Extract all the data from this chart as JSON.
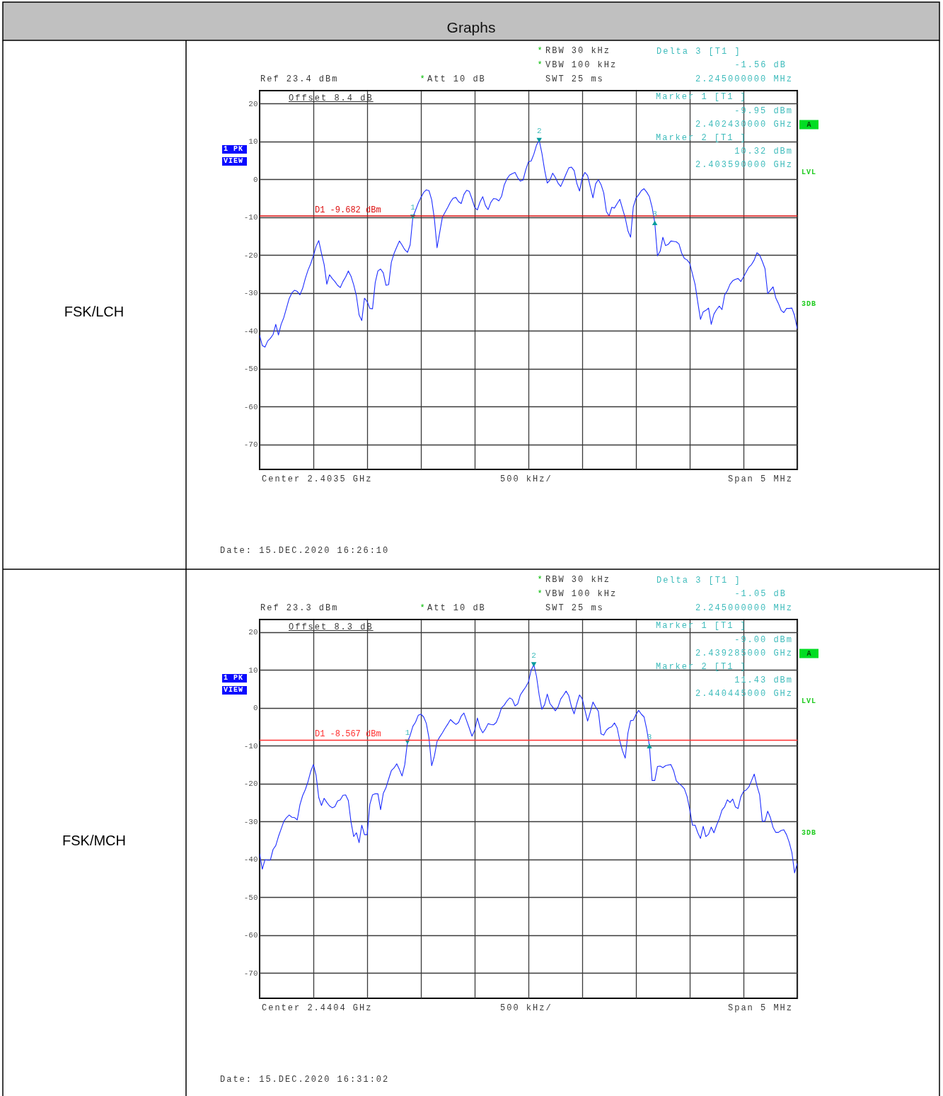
{
  "chart_data": [
    {
      "type": "line",
      "categories": [
        null,
        null,
        null,
        null,
        null,
        null,
        null,
        null,
        null,
        null,
        null,
        null,
        null,
        null,
        null,
        null,
        null,
        null,
        null,
        null,
        null,
        null,
        null,
        null,
        null,
        null,
        null,
        null,
        null,
        null,
        null,
        null,
        null,
        null,
        null,
        null,
        null,
        null,
        null,
        null,
        null,
        null,
        null,
        null,
        null,
        null,
        null,
        null,
        null,
        null,
        null,
        null,
        null,
        null,
        null,
        null,
        null,
        null,
        null,
        null,
        null,
        null,
        null,
        null,
        null,
        null,
        null,
        null,
        null,
        null,
        null,
        null,
        null,
        null,
        null,
        null,
        null,
        null,
        null,
        null,
        null,
        null,
        null,
        null,
        null,
        null,
        null,
        null,
        null,
        null,
        null,
        null,
        null,
        null,
        null,
        null,
        null,
        null,
        null,
        null,
        null,
        null,
        null,
        null,
        null,
        null,
        null,
        null,
        null,
        null,
        null,
        null,
        null,
        null,
        null,
        null,
        null,
        null,
        null,
        null,
        null,
        null,
        null,
        null,
        null,
        null,
        null,
        null,
        null,
        null,
        null,
        null,
        null,
        null,
        null,
        null,
        null,
        null,
        null,
        null,
        null,
        null,
        null,
        null,
        null,
        null,
        null,
        null,
        null,
        null,
        null,
        null,
        null,
        null,
        null,
        null,
        null,
        null,
        null,
        null,
        null,
        null,
        null,
        null,
        null,
        null,
        null,
        null,
        null,
        null,
        null,
        null,
        null,
        null,
        null,
        null,
        null,
        null,
        null,
        null,
        null,
        null,
        null,
        null,
        null,
        null,
        null,
        null,
        null,
        null,
        null,
        null,
        null,
        null,
        null,
        null,
        null,
        null,
        null,
        null,
        null
      ],
      "series": [
        {
          "color": "#1f2fff",
          "values": [
            -41.2,
            -43.9,
            -44.3,
            -42.7,
            -42.0,
            -41.0,
            -38.3,
            -41.1,
            -38.3,
            -36.5,
            -34.0,
            -31.5,
            -30.0,
            -29.3,
            -29.6,
            -30.5,
            -28.8,
            -26.2,
            -24.0,
            -22.3,
            -20.2,
            -17.7,
            -16.2,
            -19.5,
            -22.5,
            -27.7,
            -25.2,
            -26.2,
            -27.0,
            -28.0,
            -28.6,
            -27.0,
            -25.8,
            -24.2,
            -25.6,
            -27.9,
            -30.8,
            -35.8,
            -37.3,
            -31.4,
            -32.3,
            -34.1,
            -34.2,
            -27.3,
            -24.2,
            -23.7,
            -24.7,
            -28.0,
            -27.8,
            -21.9,
            -19.6,
            -17.9,
            -16.3,
            -17.4,
            -18.6,
            -19.3,
            -17.3,
            -10.0,
            -8.2,
            -6.3,
            -4.8,
            -3.5,
            -2.8,
            -3.0,
            -5.4,
            -10.4,
            -18.1,
            -14.0,
            -10.0,
            -8.7,
            -7.4,
            -6.0,
            -5.0,
            -4.8,
            -5.9,
            -6.4,
            -4.0,
            -2.9,
            -3.2,
            -5.2,
            -7.4,
            -8.1,
            -6.0,
            -4.6,
            -6.9,
            -8.0,
            -6.1,
            -5.1,
            -5.2,
            -5.7,
            -4.5,
            -1.5,
            0.1,
            1.1,
            1.5,
            1.8,
            0.4,
            -0.5,
            -0.2,
            2.5,
            4.6,
            4.8,
            6.6,
            9.0,
            10.3,
            6.9,
            2.5,
            -1.0,
            -0.2,
            1.6,
            0.5,
            -1.0,
            -1.9,
            -0.3,
            1.4,
            3.0,
            3.2,
            2.3,
            -1.1,
            -3.1,
            0.3,
            1.8,
            1.0,
            -2.0,
            -4.9,
            -1.2,
            -0.1,
            -1.4,
            -3.6,
            -8.5,
            -9.7,
            -7.4,
            -7.6,
            -6.4,
            -5.3,
            -7.8,
            -10.2,
            -13.6,
            -15.3,
            -7.3,
            -5.0,
            -4.1,
            -3.0,
            -2.5,
            -3.4,
            -4.6,
            -7.4,
            -11.5,
            -20.2,
            -19.0,
            -15.3,
            -17.5,
            -17.2,
            -16.3,
            -16.4,
            -16.5,
            -17.1,
            -19.5,
            -20.9,
            -21.3,
            -22.2,
            -25.0,
            -27.8,
            -32.5,
            -37.0,
            -35.0,
            -34.6,
            -34.0,
            -38.3,
            -35.6,
            -34.4,
            -33.5,
            -34.4,
            -30.5,
            -29.4,
            -27.7,
            -26.8,
            -26.4,
            -26.2,
            -27.0,
            -25.8,
            -24.5,
            -23.2,
            -22.5,
            -21.3,
            -19.4,
            -20.0,
            -21.7,
            -23.6,
            -30.2,
            -29.3,
            -28.4,
            -31.3,
            -32.8,
            -34.6,
            -35.2,
            -34.1,
            -34.1,
            -34.0,
            -36.0,
            -39.5
          ]
        },
        {
          "type": "scatter",
          "color": "#009c9c",
          "marker": "triangle",
          "values": [
            null,
            null,
            null,
            null,
            null,
            null,
            null,
            null,
            null,
            null,
            null,
            null,
            null,
            null,
            null,
            null,
            null,
            null,
            null,
            null,
            null,
            null,
            null,
            null,
            null,
            null,
            null,
            null,
            null,
            null,
            null,
            null,
            null,
            null,
            null,
            null,
            null,
            null,
            null,
            null,
            null,
            null,
            null,
            null,
            null,
            null,
            null,
            null,
            null,
            null,
            null,
            null,
            null,
            null,
            null,
            null,
            null,
            -9.95,
            null,
            null,
            null,
            null,
            null,
            null,
            null,
            null,
            null,
            null,
            null,
            null,
            null,
            null,
            null,
            null,
            null,
            null,
            null,
            null,
            null,
            null,
            null,
            null,
            null,
            null,
            null,
            null,
            null,
            null,
            null,
            null,
            null,
            null,
            null,
            null,
            null,
            null,
            null,
            null,
            null,
            null,
            null,
            null,
            null,
            null,
            10.32,
            null,
            null,
            null,
            null,
            null,
            null,
            null,
            null,
            null,
            null,
            null,
            null,
            null,
            null,
            null,
            null,
            null,
            null,
            null,
            null,
            null,
            null,
            null,
            null,
            null,
            null,
            null,
            null,
            null,
            null,
            null,
            null,
            null,
            null,
            null,
            null,
            null,
            null,
            null,
            null,
            null,
            null,
            -11.5,
            null,
            null,
            null,
            null,
            null,
            null,
            null,
            null,
            null,
            null,
            null,
            null,
            null,
            null,
            null,
            null,
            null,
            null,
            null,
            null,
            null,
            null,
            null,
            null,
            null,
            null,
            null,
            null,
            null,
            null,
            null,
            null,
            null,
            null,
            null,
            null,
            null,
            null,
            null,
            null,
            null,
            null,
            null,
            null,
            null,
            null,
            null,
            null,
            null,
            null,
            null,
            null,
            null
          ]
        }
      ],
      "ylim": [
        -76.6,
        23.4
      ],
      "yticks": [
        -70,
        -60,
        -50,
        -40,
        -30,
        -20,
        -10,
        0,
        10,
        20
      ],
      "grid": true,
      "tick_labels": "y",
      "ref_lines": [
        {
          "axis": "y",
          "value": -9.682,
          "label": "D1 -9.682 dBm",
          "color": "#dd1111"
        }
      ],
      "annotations": [
        "*",
        "RBW 30 kHz",
        "*",
        "VBW 100 kHz",
        "Ref 23.4 dBm",
        "*",
        "Att 10 dB",
        "SWT 25 ms",
        "Delta 3 [T1 ]",
        "-1.56 dB",
        "2.245000000 MHz",
        "Marker 1 [T1 ]",
        "-9.95 dBm",
        "2.402430000 GHz",
        "Marker 2 [T1 ]",
        "10.32 dBm",
        "2.403590000 GHz",
        "Offset 8.4 dB",
        "1 PK",
        "VIEW",
        "A",
        "LVL",
        "3DB",
        "Center 2.4035 GHz",
        "500 kHz/",
        "Span 5 MHz",
        "Date: 15.DEC.2020 16:26:10",
        "FSK/LCH",
        "Graphs",
        {
          "text": "1",
          "y": -9.95
        },
        {
          "text": "2",
          "y": 10.32
        },
        {
          "text": "3",
          "y": -11.5
        }
      ]
    },
    {
      "type": "line",
      "categories": [
        null,
        null,
        null,
        null,
        null,
        null,
        null,
        null,
        null,
        null,
        null,
        null,
        null,
        null,
        null,
        null,
        null,
        null,
        null,
        null,
        null,
        null,
        null,
        null,
        null,
        null,
        null,
        null,
        null,
        null,
        null,
        null,
        null,
        null,
        null,
        null,
        null,
        null,
        null,
        null,
        null,
        null,
        null,
        null,
        null,
        null,
        null,
        null,
        null,
        null,
        null,
        null,
        null,
        null,
        null,
        null,
        null,
        null,
        null,
        null,
        null,
        null,
        null,
        null,
        null,
        null,
        null,
        null,
        null,
        null,
        null,
        null,
        null,
        null,
        null,
        null,
        null,
        null,
        null,
        null,
        null,
        null,
        null,
        null,
        null,
        null,
        null,
        null,
        null,
        null,
        null,
        null,
        null,
        null,
        null,
        null,
        null,
        null,
        null,
        null,
        null,
        null,
        null,
        null,
        null,
        null,
        null,
        null,
        null,
        null,
        null,
        null,
        null,
        null,
        null,
        null,
        null,
        null,
        null,
        null,
        null,
        null,
        null,
        null,
        null,
        null,
        null,
        null,
        null,
        null,
        null,
        null,
        null,
        null,
        null,
        null,
        null,
        null,
        null,
        null,
        null,
        null,
        null,
        null,
        null,
        null,
        null,
        null,
        null,
        null,
        null,
        null,
        null,
        null,
        null,
        null,
        null,
        null,
        null,
        null,
        null,
        null,
        null,
        null,
        null,
        null,
        null,
        null,
        null,
        null,
        null,
        null,
        null,
        null,
        null,
        null,
        null,
        null,
        null,
        null,
        null,
        null,
        null,
        null,
        null,
        null,
        null,
        null,
        null,
        null,
        null,
        null,
        null,
        null,
        null,
        null,
        null,
        null,
        null,
        null,
        null
      ],
      "series": [
        {
          "color": "#1f2fff",
          "values": [
            -38.6,
            -42.6,
            -40.1,
            -40.2,
            -40.2,
            -37.4,
            -36.4,
            -34.0,
            -32.0,
            -30.0,
            -29.0,
            -28.3,
            -28.9,
            -29.0,
            -29.6,
            -25.6,
            -23.2,
            -21.6,
            -19.5,
            -16.8,
            -15.0,
            -17.8,
            -23.7,
            -25.8,
            -23.9,
            -25.0,
            -25.9,
            -26.4,
            -26.1,
            -24.6,
            -24.3,
            -23.1,
            -23.0,
            -24.5,
            -30.2,
            -34.0,
            -33.0,
            -35.6,
            -31.0,
            -33.5,
            -33.5,
            -25.5,
            -23.0,
            -22.7,
            -22.7,
            -26.9,
            -22.6,
            -21.1,
            -18.8,
            -16.6,
            -15.9,
            -14.8,
            -16.3,
            -18.0,
            -15.0,
            -9.0,
            -7.3,
            -4.9,
            -3.8,
            -2.0,
            -1.7,
            -2.4,
            -4.1,
            -8.0,
            -15.3,
            -12.8,
            -8.9,
            -7.7,
            -6.6,
            -5.4,
            -4.3,
            -3.1,
            -3.8,
            -4.4,
            -3.9,
            -2.2,
            -1.4,
            -3.4,
            -5.4,
            -7.5,
            -6.0,
            -2.7,
            -5.3,
            -6.6,
            -5.6,
            -4.2,
            -4.4,
            -4.5,
            -3.9,
            -2.2,
            0.0,
            0.7,
            1.8,
            2.6,
            2.2,
            0.5,
            1.0,
            3.4,
            4.5,
            5.5,
            6.8,
            9.9,
            11.4,
            8.3,
            3.3,
            -0.4,
            0.8,
            3.6,
            1.1,
            0.2,
            -0.8,
            0.2,
            2.3,
            3.3,
            4.4,
            3.2,
            0.3,
            -1.6,
            1.1,
            3.4,
            2.4,
            -0.6,
            -3.5,
            -1.1,
            1.5,
            0.2,
            -0.9,
            -6.9,
            -7.2,
            -5.9,
            -5.3,
            -5.0,
            -4.0,
            -5.3,
            -8.8,
            -11.4,
            -13.3,
            -6.7,
            -3.4,
            -3.3,
            -1.8,
            -0.7,
            -1.7,
            -2.4,
            -5.7,
            -10.1,
            -19.2,
            -19.2,
            -15.5,
            -15.4,
            -15.8,
            -15.3,
            -15.1,
            -15.0,
            -16.6,
            -19.3,
            -20.0,
            -20.6,
            -21.4,
            -23.4,
            -26.8,
            -31.0,
            -31.0,
            -33.0,
            -34.5,
            -31.3,
            -34.0,
            -33.4,
            -31.5,
            -33.0,
            -31.0,
            -29.3,
            -27.0,
            -26.1,
            -24.3,
            -25.0,
            -24.1,
            -26.2,
            -26.6,
            -23.5,
            -22.1,
            -21.7,
            -20.9,
            -19.2,
            -17.5,
            -20.6,
            -23.0,
            -30.0,
            -29.9,
            -27.3,
            -29.0,
            -31.6,
            -32.9,
            -32.9,
            -32.4,
            -32.2,
            -33.5,
            -35.5,
            -38.2,
            -43.6,
            -41.1
          ]
        },
        {
          "type": "scatter",
          "color": "#009c9c",
          "marker": "triangle",
          "values": [
            null,
            null,
            null,
            null,
            null,
            null,
            null,
            null,
            null,
            null,
            null,
            null,
            null,
            null,
            null,
            null,
            null,
            null,
            null,
            null,
            null,
            null,
            null,
            null,
            null,
            null,
            null,
            null,
            null,
            null,
            null,
            null,
            null,
            null,
            null,
            null,
            null,
            null,
            null,
            null,
            null,
            null,
            null,
            null,
            null,
            null,
            null,
            null,
            null,
            null,
            null,
            null,
            null,
            null,
            null,
            -9.0,
            null,
            null,
            null,
            null,
            null,
            null,
            null,
            null,
            null,
            null,
            null,
            null,
            null,
            null,
            null,
            null,
            null,
            null,
            null,
            null,
            null,
            null,
            null,
            null,
            null,
            null,
            null,
            null,
            null,
            null,
            null,
            null,
            null,
            null,
            null,
            null,
            null,
            null,
            null,
            null,
            null,
            null,
            null,
            null,
            null,
            null,
            11.43,
            null,
            null,
            null,
            null,
            null,
            null,
            null,
            null,
            null,
            null,
            null,
            null,
            null,
            null,
            null,
            null,
            null,
            null,
            null,
            null,
            null,
            null,
            null,
            null,
            null,
            null,
            null,
            null,
            null,
            null,
            null,
            null,
            null,
            null,
            null,
            null,
            null,
            null,
            null,
            null,
            null,
            null,
            -10.1,
            null,
            null,
            null,
            null,
            null,
            null,
            null,
            null,
            null,
            null,
            null,
            null,
            null,
            null,
            null,
            null,
            null,
            null,
            null,
            null,
            null,
            null,
            null,
            null,
            null,
            null,
            null,
            null,
            null,
            null,
            null,
            null,
            null,
            null,
            null,
            null,
            null,
            null,
            null,
            null,
            null,
            null,
            null,
            null,
            null,
            null,
            null,
            null,
            null,
            null,
            null,
            null,
            null,
            null,
            null
          ]
        }
      ],
      "ylim": [
        -76.7,
        23.3
      ],
      "yticks": [
        -70,
        -60,
        -50,
        -40,
        -30,
        -20,
        -10,
        0,
        10,
        20
      ],
      "grid": true,
      "tick_labels": "y",
      "ref_lines": [
        {
          "axis": "y",
          "value": -8.567,
          "label": "D1 -8.567 dBm",
          "color": "#ff3030"
        }
      ],
      "annotations": [
        "*",
        "RBW 30 kHz",
        "*",
        "VBW 100 kHz",
        "Ref 23.3 dBm",
        "*",
        "Att 10 dB",
        "SWT 25 ms",
        "Delta 3 [T1 ]",
        "-1.05 dB",
        "2.245000000 MHz",
        "Marker 1 [T1 ]",
        "-9.00 dBm",
        "2.439285000 GHz",
        "Marker 2 [T1 ]",
        "11.43 dBm",
        "2.440445000 GHz",
        "Offset 8.3 dB",
        "1 PK",
        "VIEW",
        "A",
        "LVL",
        "3DB",
        "Center 2.4404 GHz",
        "500 kHz/",
        "Span 5 MHz",
        "Date: 15.DEC.2020 16:31:02",
        "FSK/MCH",
        {
          "text": "1",
          "y": -9.0
        },
        {
          "text": "2",
          "y": 11.43
        },
        {
          "text": "3",
          "y": -10.1
        }
      ]
    }
  ]
}
